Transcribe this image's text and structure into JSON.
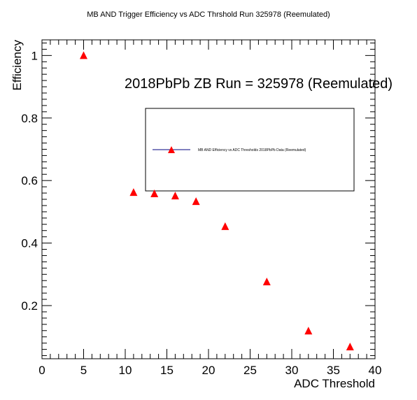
{
  "chart_data": {
    "type": "scatter",
    "title": "MB AND Trigger Efficiency vs ADC Thrshold Run 325978 (Reemulated)",
    "annotation": "2018PbPb ZB Run = 325978 (Reemulated)",
    "xlabel": "ADC Threshold",
    "ylabel": "Efficiency",
    "xlim": [
      0,
      40
    ],
    "ylim": [
      0.03,
      1.05
    ],
    "x_ticks": [
      0,
      5,
      10,
      15,
      20,
      25,
      30,
      35,
      40
    ],
    "y_ticks": [
      0.2,
      0.4,
      0.6,
      0.8,
      1
    ],
    "x_tick_labels": [
      "0",
      "5",
      "10",
      "15",
      "20",
      "25",
      "30",
      "35",
      "40"
    ],
    "y_tick_labels": [
      "0.2",
      "0.4",
      "0.6",
      "0.8",
      "1"
    ],
    "grid": false,
    "legend_position": "upper-right",
    "series": [
      {
        "name": "MB AND Efficiency vs ADC Thresholds 2018PbPb Data (Reemulated)",
        "marker": "triangle",
        "marker_color": "#ff0000",
        "line_color": "#00007f",
        "x": [
          5,
          11,
          13.5,
          16,
          18.5,
          22,
          27,
          32,
          37
        ],
        "y": [
          1.0,
          0.562,
          0.558,
          0.551,
          0.533,
          0.453,
          0.276,
          0.119,
          0.068
        ]
      }
    ]
  }
}
